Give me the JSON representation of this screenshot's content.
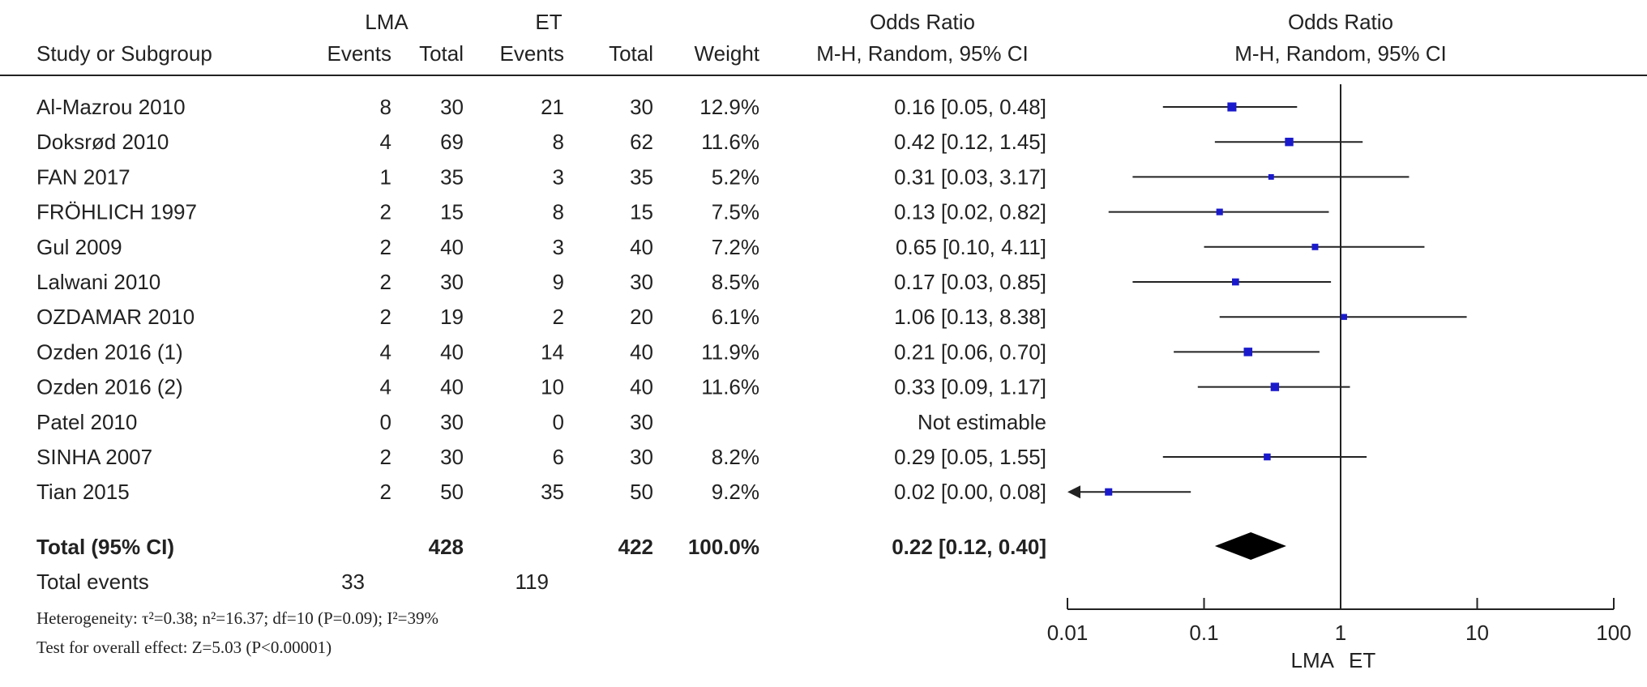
{
  "chart_data": {
    "type": "forest",
    "headers": {
      "group1": "LMA",
      "group2": "ET",
      "study": "Study or Subgroup",
      "events": "Events",
      "total": "Total",
      "weight": "Weight",
      "or_title": "Odds Ratio",
      "or_method": "M-H, Random, 95% CI",
      "plot_title": "Odds Ratio",
      "plot_method": "M-H, Random, 95% CI"
    },
    "studies": [
      {
        "name": "Al-Mazrou 2010",
        "e1": "8",
        "n1": "30",
        "e2": "21",
        "n2": "30",
        "weight": "12.9%",
        "ci_text": "0.16 [0.05, 0.48]",
        "or": 0.16,
        "lo": 0.05,
        "hi": 0.48,
        "w": 12.9
      },
      {
        "name": "Doksrød 2010",
        "e1": "4",
        "n1": "69",
        "e2": "8",
        "n2": "62",
        "weight": "11.6%",
        "ci_text": "0.42 [0.12, 1.45]",
        "or": 0.42,
        "lo": 0.12,
        "hi": 1.45,
        "w": 11.6
      },
      {
        "name": "FAN 2017",
        "e1": "1",
        "n1": "35",
        "e2": "3",
        "n2": "35",
        "weight": "5.2%",
        "ci_text": "0.31 [0.03, 3.17]",
        "or": 0.31,
        "lo": 0.03,
        "hi": 3.17,
        "w": 5.2
      },
      {
        "name": "FRÖHLICH 1997",
        "e1": "2",
        "n1": "15",
        "e2": "8",
        "n2": "15",
        "weight": "7.5%",
        "ci_text": "0.13 [0.02, 0.82]",
        "or": 0.13,
        "lo": 0.02,
        "hi": 0.82,
        "w": 7.5
      },
      {
        "name": "Gul 2009",
        "e1": "2",
        "n1": "40",
        "e2": "3",
        "n2": "40",
        "weight": "7.2%",
        "ci_text": "0.65 [0.10, 4.11]",
        "or": 0.65,
        "lo": 0.1,
        "hi": 4.11,
        "w": 7.2
      },
      {
        "name": "Lalwani 2010",
        "e1": "2",
        "n1": "30",
        "e2": "9",
        "n2": "30",
        "weight": "8.5%",
        "ci_text": "0.17 [0.03, 0.85]",
        "or": 0.17,
        "lo": 0.03,
        "hi": 0.85,
        "w": 8.5
      },
      {
        "name": "OZDAMAR 2010",
        "e1": "2",
        "n1": "19",
        "e2": "2",
        "n2": "20",
        "weight": "6.1%",
        "ci_text": "1.06 [0.13, 8.38]",
        "or": 1.06,
        "lo": 0.13,
        "hi": 8.38,
        "w": 6.1
      },
      {
        "name": "Ozden 2016 (1)",
        "e1": "4",
        "n1": "40",
        "e2": "14",
        "n2": "40",
        "weight": "11.9%",
        "ci_text": "0.21 [0.06, 0.70]",
        "or": 0.21,
        "lo": 0.06,
        "hi": 0.7,
        "w": 11.9
      },
      {
        "name": "Ozden 2016 (2)",
        "e1": "4",
        "n1": "40",
        "e2": "10",
        "n2": "40",
        "weight": "11.6%",
        "ci_text": "0.33 [0.09, 1.17]",
        "or": 0.33,
        "lo": 0.09,
        "hi": 1.17,
        "w": 11.6
      },
      {
        "name": "Patel 2010",
        "e1": "0",
        "n1": "30",
        "e2": "0",
        "n2": "30",
        "weight": "",
        "ci_text": "Not estimable",
        "or": null,
        "lo": null,
        "hi": null,
        "w": 0
      },
      {
        "name": "SINHA 2007",
        "e1": "2",
        "n1": "30",
        "e2": "6",
        "n2": "30",
        "weight": "8.2%",
        "ci_text": "0.29 [0.05, 1.55]",
        "or": 0.29,
        "lo": 0.05,
        "hi": 1.55,
        "w": 8.2
      },
      {
        "name": "Tian 2015",
        "e1": "2",
        "n1": "50",
        "e2": "35",
        "n2": "50",
        "weight": "9.2%",
        "ci_text": "0.02 [0.00, 0.08]",
        "or": 0.02,
        "lo": 0.0,
        "hi": 0.08,
        "w": 9.2
      }
    ],
    "total": {
      "name": "Total (95% CI)",
      "n1": "428",
      "n2": "422",
      "weight": "100.0%",
      "ci_text": "0.22 [0.12, 0.40]",
      "or": 0.22,
      "lo": 0.12,
      "hi": 0.4
    },
    "total_events": {
      "label": "Total events",
      "e1": "33",
      "e2": "119"
    },
    "heterogeneity": "Heterogeneity: τ²=0.38; n²=16.37; df=10 (P=0.09); I²=39%",
    "overall_effect": "Test for overall effect: Z=5.03 (P<0.00001)",
    "x_axis": {
      "scale": "log",
      "range": [
        0.01,
        100
      ],
      "ticks": [
        "0.01",
        "0.1",
        "1",
        "10",
        "100"
      ],
      "favours_left": "LMA",
      "favours_right": "ET"
    },
    "colors": {
      "marker": "#1a1acc",
      "diamond": "#000000",
      "line": "#222222"
    }
  }
}
